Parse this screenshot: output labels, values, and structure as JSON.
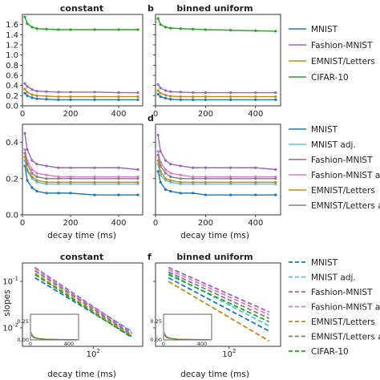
{
  "colors": {
    "MNIST": "#1f77b4",
    "MNIST adj.": "#5bc0de",
    "Fashion-MNIST": "#9467bd",
    "Fashion-MNIST adj.": "#e377c2",
    "EMNIST/Letters": "#c08a1c",
    "EMNIST/Letters adj.": "#7f7f7f",
    "CIFAR-10": "#2ca02c"
  },
  "panels": {
    "a": {
      "label": "",
      "title": "constant"
    },
    "b": {
      "label": "b",
      "title": "binned uniform"
    },
    "c": {
      "label": ""
    },
    "d": {
      "label": "d"
    },
    "e": {
      "label": "",
      "title": "constant",
      "ylabel": "slopes"
    },
    "f": {
      "label": "f",
      "title": "binned uniform"
    }
  },
  "xlabel": "decay time (ms)",
  "legends": {
    "top": [
      "MNIST",
      "Fashion-MNIST",
      "EMNIST/Letters",
      "CIFAR-10"
    ],
    "mid": [
      "MNIST",
      "MNIST adj.",
      "Fashion-MNIST",
      "Fashion-MNIST adj.",
      "EMNIST/Letters",
      "EMNIST/Letters adj."
    ],
    "bot": [
      "MNIST",
      "MNIST adj.",
      "Fashion-MNIST",
      "Fashion-MNIST adj.",
      "EMNIST/Letters",
      "EMNIST/Letters adj.",
      "CIFAR-10"
    ]
  },
  "chart_data": [
    {
      "panel": "a",
      "type": "line",
      "title": "constant",
      "xlim": [
        0,
        500
      ],
      "ylim": [
        0,
        1.8
      ],
      "xticks": [
        0,
        200,
        400
      ],
      "yticks": [
        0.0,
        0.2,
        0.4,
        0.6,
        0.8,
        1.0,
        1.2,
        1.4,
        1.6
      ],
      "x": [
        10,
        20,
        40,
        60,
        100,
        150,
        200,
        300,
        400,
        480
      ],
      "series": [
        {
          "name": "MNIST",
          "values": [
            0.25,
            0.2,
            0.16,
            0.14,
            0.13,
            0.12,
            0.12,
            0.12,
            0.12,
            0.12
          ]
        },
        {
          "name": "Fashion-MNIST",
          "values": [
            0.44,
            0.38,
            0.32,
            0.29,
            0.28,
            0.27,
            0.27,
            0.27,
            0.26,
            0.26
          ]
        },
        {
          "name": "EMNIST/Letters",
          "values": [
            0.33,
            0.27,
            0.22,
            0.2,
            0.19,
            0.18,
            0.18,
            0.18,
            0.18,
            0.18
          ]
        },
        {
          "name": "CIFAR-10",
          "values": [
            1.75,
            1.62,
            1.55,
            1.52,
            1.51,
            1.5,
            1.5,
            1.5,
            1.5,
            1.5
          ]
        }
      ]
    },
    {
      "panel": "b",
      "type": "line",
      "title": "binned uniform",
      "xlim": [
        0,
        500
      ],
      "ylim": [
        0,
        1.8
      ],
      "xticks": [
        0,
        200,
        400
      ],
      "yticks": [
        0.0,
        0.2,
        0.4,
        0.6,
        0.8,
        1.0,
        1.2,
        1.4,
        1.6
      ],
      "x": [
        10,
        20,
        40,
        60,
        100,
        150,
        200,
        300,
        400,
        480
      ],
      "series": [
        {
          "name": "MNIST",
          "values": [
            0.23,
            0.18,
            0.15,
            0.13,
            0.12,
            0.12,
            0.12,
            0.12,
            0.12,
            0.12
          ]
        },
        {
          "name": "Fashion-MNIST",
          "values": [
            0.42,
            0.35,
            0.3,
            0.28,
            0.27,
            0.26,
            0.26,
            0.26,
            0.26,
            0.26
          ]
        },
        {
          "name": "EMNIST/Letters",
          "values": [
            0.3,
            0.25,
            0.21,
            0.19,
            0.18,
            0.18,
            0.18,
            0.18,
            0.18,
            0.18
          ]
        },
        {
          "name": "CIFAR-10",
          "values": [
            1.72,
            1.6,
            1.55,
            1.53,
            1.52,
            1.51,
            1.5,
            1.49,
            1.48,
            1.47
          ]
        }
      ]
    },
    {
      "panel": "c",
      "type": "line",
      "xlim": [
        0,
        500
      ],
      "ylim": [
        0,
        0.5
      ],
      "xticks": [
        0,
        200,
        400
      ],
      "yticks": [
        0.0,
        0.2,
        0.4
      ],
      "xlabel": "decay time (ms)",
      "x": [
        10,
        20,
        40,
        60,
        100,
        150,
        200,
        300,
        400,
        480
      ],
      "series": [
        {
          "name": "MNIST",
          "values": [
            0.27,
            0.19,
            0.15,
            0.13,
            0.12,
            0.12,
            0.12,
            0.11,
            0.11,
            0.11
          ]
        },
        {
          "name": "MNIST adj.",
          "values": [
            0.3,
            0.24,
            0.2,
            0.18,
            0.17,
            0.17,
            0.17,
            0.17,
            0.17,
            0.17
          ]
        },
        {
          "name": "Fashion-MNIST",
          "values": [
            0.45,
            0.36,
            0.3,
            0.28,
            0.27,
            0.26,
            0.26,
            0.26,
            0.26,
            0.25
          ]
        },
        {
          "name": "Fashion-MNIST adj.",
          "values": [
            0.36,
            0.3,
            0.25,
            0.23,
            0.22,
            0.21,
            0.21,
            0.21,
            0.21,
            0.21
          ]
        },
        {
          "name": "EMNIST/Letters",
          "values": [
            0.32,
            0.25,
            0.21,
            0.19,
            0.18,
            0.18,
            0.18,
            0.18,
            0.18,
            0.18
          ]
        },
        {
          "name": "EMNIST/Letters adj.",
          "values": [
            0.34,
            0.28,
            0.23,
            0.21,
            0.2,
            0.2,
            0.2,
            0.2,
            0.2,
            0.2
          ]
        }
      ]
    },
    {
      "panel": "d",
      "type": "line",
      "xlim": [
        0,
        500
      ],
      "ylim": [
        0,
        0.5
      ],
      "xticks": [
        0,
        200,
        400
      ],
      "yticks": [
        0.0,
        0.2,
        0.4
      ],
      "xlabel": "decay time (ms)",
      "x": [
        10,
        20,
        40,
        60,
        100,
        150,
        200,
        300,
        400,
        480
      ],
      "series": [
        {
          "name": "MNIST",
          "values": [
            0.24,
            0.18,
            0.14,
            0.13,
            0.12,
            0.12,
            0.11,
            0.11,
            0.11,
            0.11
          ]
        },
        {
          "name": "MNIST adj.",
          "values": [
            0.28,
            0.22,
            0.19,
            0.18,
            0.17,
            0.17,
            0.17,
            0.17,
            0.17,
            0.17
          ]
        },
        {
          "name": "Fashion-MNIST",
          "values": [
            0.44,
            0.35,
            0.3,
            0.28,
            0.27,
            0.26,
            0.26,
            0.26,
            0.26,
            0.25
          ]
        },
        {
          "name": "Fashion-MNIST adj.",
          "values": [
            0.35,
            0.29,
            0.25,
            0.23,
            0.22,
            0.21,
            0.21,
            0.21,
            0.21,
            0.21
          ]
        },
        {
          "name": "EMNIST/Letters",
          "values": [
            0.3,
            0.24,
            0.2,
            0.19,
            0.18,
            0.18,
            0.18,
            0.18,
            0.18,
            0.18
          ]
        },
        {
          "name": "EMNIST/Letters adj.",
          "values": [
            0.33,
            0.27,
            0.23,
            0.21,
            0.2,
            0.2,
            0.2,
            0.2,
            0.2,
            0.2
          ]
        }
      ]
    },
    {
      "panel": "e",
      "type": "line",
      "title": "constant",
      "xscale": "log",
      "yscale": "log",
      "xlim": [
        10,
        500
      ],
      "ylim": [
        0.004,
        0.25
      ],
      "xticks": [
        100
      ],
      "xtick_labels": [
        "10^2"
      ],
      "yticks": [
        0.01,
        0.1
      ],
      "ytick_labels": [
        "10^-2",
        "10^-1"
      ],
      "ylabel": "slopes",
      "xlabel": "decay time (ms)",
      "line_style": "dashed",
      "x": [
        15,
        350
      ],
      "series": [
        {
          "name": "MNIST",
          "values": [
            0.12,
            0.0065
          ]
        },
        {
          "name": "MNIST adj.",
          "values": [
            0.17,
            0.0085
          ]
        },
        {
          "name": "Fashion-MNIST",
          "values": [
            0.2,
            0.008
          ]
        },
        {
          "name": "Fashion-MNIST adj.",
          "values": [
            0.19,
            0.0075
          ]
        },
        {
          "name": "EMNIST/Letters",
          "values": [
            0.15,
            0.0068
          ]
        },
        {
          "name": "EMNIST/Letters adj.",
          "values": [
            0.17,
            0.0072
          ]
        },
        {
          "name": "CIFAR-10",
          "values": [
            0.14,
            0.0062
          ]
        }
      ],
      "inset": {
        "xticks": [
          0,
          400
        ],
        "yticks": [
          0.0,
          0.25
        ],
        "ytick_labels": [
          "0.00",
          "0.25"
        ]
      }
    },
    {
      "panel": "f",
      "type": "line",
      "title": "binned uniform",
      "xscale": "log",
      "yscale": "log",
      "xlim": [
        10,
        500
      ],
      "ylim": [
        0.004,
        0.25
      ],
      "xticks": [
        100
      ],
      "xtick_labels": [
        "10^2"
      ],
      "yticks": [
        0.01,
        0.1
      ],
      "ytick_labels": [
        "10^-2",
        "10^-1"
      ],
      "xlabel": "decay time (ms)",
      "line_style": "dashed",
      "x": [
        15,
        350
      ],
      "series": [
        {
          "name": "MNIST",
          "values": [
            0.12,
            0.0085
          ]
        },
        {
          "name": "MNIST adj.",
          "values": [
            0.15,
            0.011
          ]
        },
        {
          "name": "Fashion-MNIST",
          "values": [
            0.2,
            0.022
          ]
        },
        {
          "name": "Fashion-MNIST adj.",
          "values": [
            0.18,
            0.019
          ]
        },
        {
          "name": "EMNIST/Letters",
          "values": [
            0.1,
            0.0052
          ]
        },
        {
          "name": "EMNIST/Letters adj.",
          "values": [
            0.16,
            0.016
          ]
        },
        {
          "name": "CIFAR-10",
          "values": [
            0.14,
            0.0135
          ]
        }
      ],
      "inset": {
        "xticks": [
          0,
          400
        ],
        "yticks": [
          0.0,
          0.25
        ],
        "ytick_labels": [
          "0.00",
          "0.25"
        ]
      }
    }
  ]
}
